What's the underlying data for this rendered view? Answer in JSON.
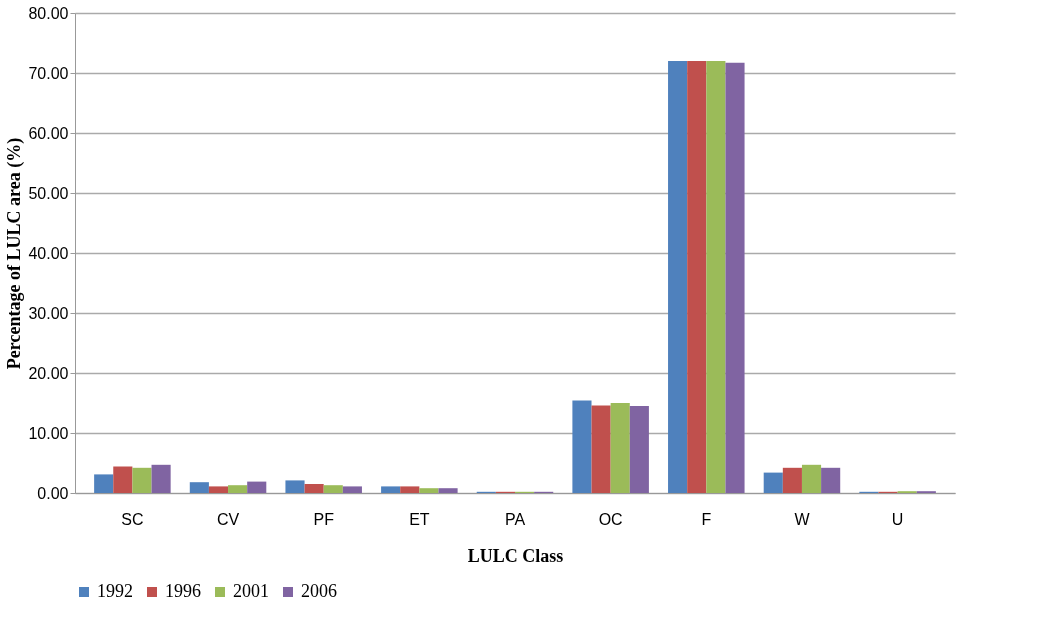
{
  "chart_data": {
    "type": "bar",
    "xlabel": "LULC Class",
    "ylabel": "Percentage of LULC area (%)",
    "categories": [
      "SC",
      "CV",
      "PF",
      "ET",
      "PA",
      "OC",
      "F",
      "W",
      "U"
    ],
    "series": [
      {
        "name": "1992",
        "color": "#4f81bd",
        "values": [
          3.1,
          1.8,
          2.1,
          1.1,
          0.2,
          15.4,
          72.0,
          3.4,
          0.2
        ]
      },
      {
        "name": "1996",
        "color": "#c0504d",
        "values": [
          4.4,
          1.1,
          1.5,
          1.1,
          0.2,
          14.6,
          72.0,
          4.2,
          0.2
        ]
      },
      {
        "name": "2001",
        "color": "#9bbb59",
        "values": [
          4.2,
          1.3,
          1.3,
          0.8,
          0.2,
          15.0,
          72.0,
          4.7,
          0.3
        ]
      },
      {
        "name": "2006",
        "color": "#8064a2",
        "values": [
          4.7,
          1.9,
          1.1,
          0.8,
          0.2,
          14.5,
          71.7,
          4.2,
          0.3
        ]
      }
    ],
    "ylim": [
      0,
      80
    ],
    "yticks": [
      {
        "value": 0,
        "label": "0.00"
      },
      {
        "value": 10,
        "label": "10.00"
      },
      {
        "value": 20,
        "label": "20.00"
      },
      {
        "value": 30,
        "label": "30.00"
      },
      {
        "value": 40,
        "label": "40.00"
      },
      {
        "value": 50,
        "label": "50.00"
      },
      {
        "value": 60,
        "label": "60.00"
      },
      {
        "value": 70,
        "label": "70.00"
      },
      {
        "value": 80,
        "label": "80.00"
      }
    ],
    "grid": "y",
    "legend": "bottom"
  }
}
